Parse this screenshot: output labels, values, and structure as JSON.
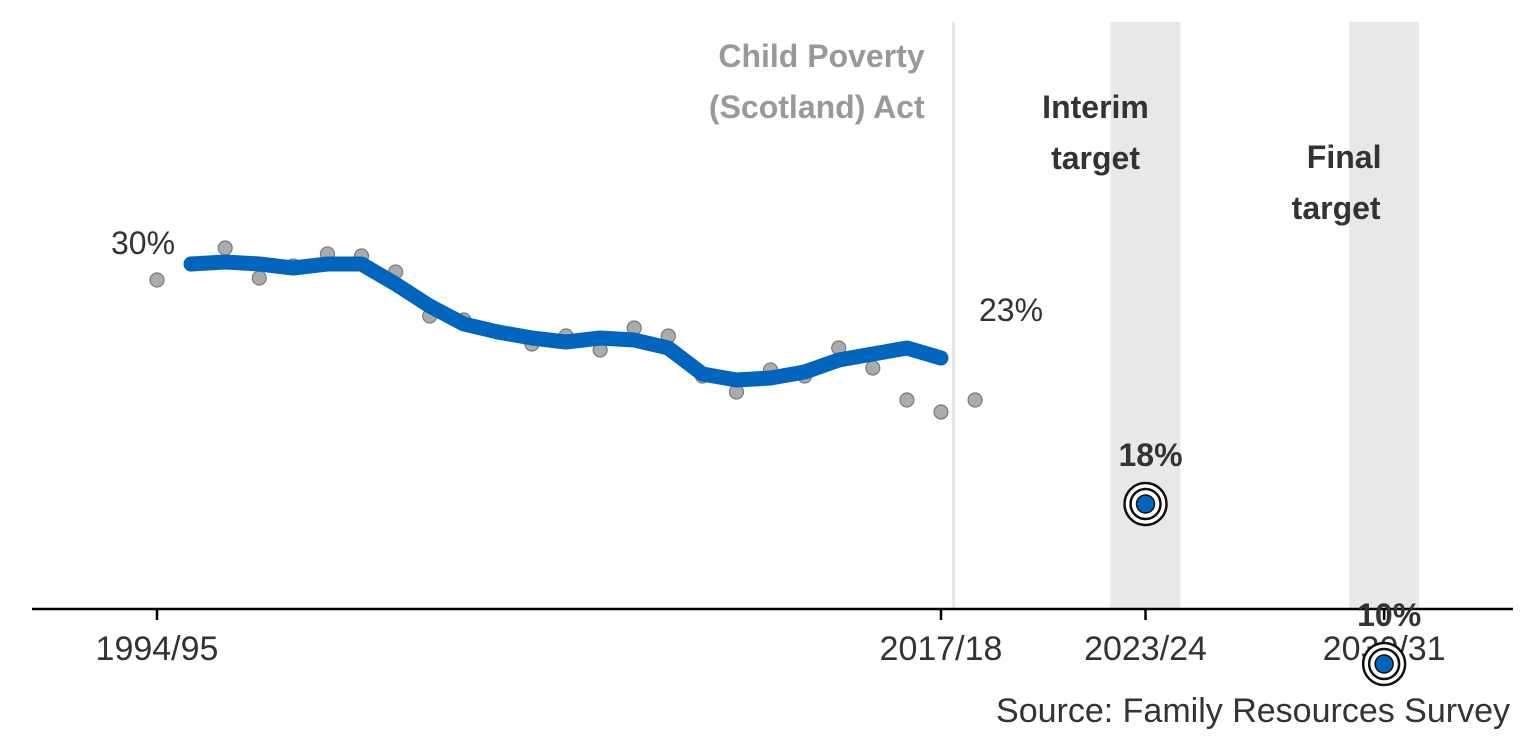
{
  "chart_data": {
    "type": "line",
    "title": "",
    "xlabel": "",
    "ylabel": "",
    "ylim": [
      6,
      35
    ],
    "x_tick_labels": [
      "1994/95",
      "2017/18",
      "2023/24",
      "2030/31"
    ],
    "x_ticks": [
      1994,
      2017,
      2023,
      2030
    ],
    "points": {
      "name": "",
      "x": [
        1994,
        1995,
        1996,
        1997,
        1998,
        1999,
        2000,
        2001,
        2002,
        2003,
        2004,
        2005,
        2006,
        2007,
        2008,
        2009,
        2010,
        2011,
        2012,
        2013,
        2014,
        2015,
        2016,
        2017,
        2018
      ],
      "y": [
        29.2,
        30.0,
        30.8,
        29.3,
        29.9,
        30.5,
        30.4,
        29.6,
        27.4,
        27.2,
        26.6,
        26.0,
        26.4,
        25.7,
        26.8,
        26.4,
        24.4,
        23.6,
        24.7,
        24.4,
        25.8,
        24.8,
        23.2,
        22.6,
        23.2
      ]
    },
    "trend": {
      "name": "",
      "x": [
        1995,
        1996,
        1997,
        1998,
        1999,
        2000,
        2001,
        2002,
        2003,
        2004,
        2005,
        2006,
        2007,
        2008,
        2009,
        2010,
        2011,
        2012,
        2013,
        2014,
        2015,
        2016,
        2017
      ],
      "y": [
        30.0,
        30.1,
        30.0,
        29.8,
        30.0,
        30.0,
        29.0,
        27.9,
        27.0,
        26.6,
        26.3,
        26.1,
        26.3,
        26.2,
        25.8,
        24.5,
        24.2,
        24.3,
        24.6,
        25.2,
        25.5,
        25.8,
        25.3
      ]
    },
    "labels": {
      "start": "30%",
      "end": "23%"
    },
    "legislation": {
      "x": 2017.4,
      "label_lines": [
        "Child Poverty",
        "(Scotland) Act"
      ]
    },
    "targets": [
      {
        "x": 2023,
        "value": 18,
        "value_label": "18%",
        "name_lines": [
          "Interim",
          "target"
        ]
      },
      {
        "x": 2030,
        "value": 10,
        "value_label": "10%",
        "name_lines": [
          "Final",
          "target"
        ]
      }
    ],
    "source": "Source: Family Resources Survey",
    "colors": {
      "trend": "#0065bd",
      "points": "#a6a6a6",
      "band": "#e8e8e8",
      "act_line": "#e6e6e6",
      "text": "#333333",
      "act_text": "#999999"
    }
  }
}
